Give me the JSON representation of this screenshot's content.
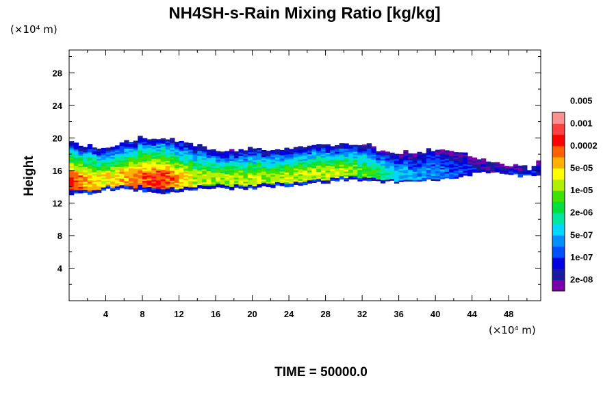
{
  "chart_data": {
    "type": "heatmap",
    "title": "NH4SH-s-Rain Mixing Ratio [kg/kg]",
    "ylabel": "Height",
    "xlabel": "",
    "x_unit": "(×10⁴ m)",
    "y_unit": "(×10⁴ m)",
    "xlim": [
      0,
      51.5
    ],
    "ylim": [
      0,
      30.8
    ],
    "x_ticks": [
      4,
      8,
      12,
      16,
      20,
      24,
      28,
      32,
      36,
      40,
      44,
      48
    ],
    "y_ticks": [
      4,
      8,
      12,
      16,
      20,
      24,
      28
    ],
    "footer": "TIME = 50000.0",
    "colorbar": {
      "colors": [
        "#7a00aa",
        "#1a1aa0",
        "#0000e0",
        "#0050ff",
        "#0090ff",
        "#00d8ff",
        "#00e8a0",
        "#00e040",
        "#40e000",
        "#b0f000",
        "#ffff00",
        "#ffb000",
        "#ff6000",
        "#ff0000",
        "#ff4040",
        "#ff9090"
      ],
      "labels": [
        "2e-08",
        "1e-07",
        "5e-07",
        "2e-06",
        "1e-05",
        "5e-05",
        "0.0002",
        "0.001",
        "0.005"
      ]
    },
    "field": {
      "description_levels": "color index 0-15 along colorbar (low to high)",
      "core_region": [
        {
          "x": 0,
          "base": 13.2,
          "top": 19.2,
          "peak": 13
        },
        {
          "x": 2,
          "base": 13.2,
          "top": 19.0,
          "peak": 11
        },
        {
          "x": 4,
          "base": 13.6,
          "top": 18.6,
          "peak": 10
        },
        {
          "x": 6,
          "base": 13.7,
          "top": 19.2,
          "peak": 11
        },
        {
          "x": 8,
          "base": 13.6,
          "top": 20.0,
          "peak": 12
        },
        {
          "x": 10,
          "base": 13.0,
          "top": 20.0,
          "peak": 13
        },
        {
          "x": 12,
          "base": 13.6,
          "top": 19.6,
          "peak": 11
        },
        {
          "x": 14,
          "base": 13.7,
          "top": 19.0,
          "peak": 9
        },
        {
          "x": 16,
          "base": 13.8,
          "top": 18.4,
          "peak": 9
        },
        {
          "x": 18,
          "base": 13.8,
          "top": 18.2,
          "peak": 9
        },
        {
          "x": 20,
          "base": 13.8,
          "top": 18.6,
          "peak": 9
        },
        {
          "x": 22,
          "base": 14.0,
          "top": 18.4,
          "peak": 9
        },
        {
          "x": 24,
          "base": 14.2,
          "top": 18.6,
          "peak": 9
        },
        {
          "x": 26,
          "base": 14.4,
          "top": 18.8,
          "peak": 9
        },
        {
          "x": 28,
          "base": 14.6,
          "top": 19.0,
          "peak": 9
        },
        {
          "x": 30,
          "base": 14.8,
          "top": 19.2,
          "peak": 9
        },
        {
          "x": 32,
          "base": 14.8,
          "top": 19.2,
          "peak": 8
        },
        {
          "x": 34,
          "base": 14.6,
          "top": 18.4,
          "peak": 7
        },
        {
          "x": 36,
          "base": 14.6,
          "top": 18.2,
          "peak": 5
        },
        {
          "x": 38,
          "base": 14.8,
          "top": 18.2,
          "peak": 4
        },
        {
          "x": 40,
          "base": 14.8,
          "top": 18.4,
          "peak": 4
        },
        {
          "x": 42,
          "base": 15.0,
          "top": 18.4,
          "peak": 3
        },
        {
          "x": 44,
          "base": 15.6,
          "top": 17.8,
          "peak": 2
        },
        {
          "x": 46,
          "base": 15.8,
          "top": 17.2,
          "peak": 1
        },
        {
          "x": 48,
          "base": 15.4,
          "top": 16.6,
          "peak": 2
        },
        {
          "x": 50,
          "base": 15.4,
          "top": 16.2,
          "peak": 2
        },
        {
          "x": 51.5,
          "base": 15.2,
          "top": 17.0,
          "peak": 2
        }
      ]
    }
  }
}
